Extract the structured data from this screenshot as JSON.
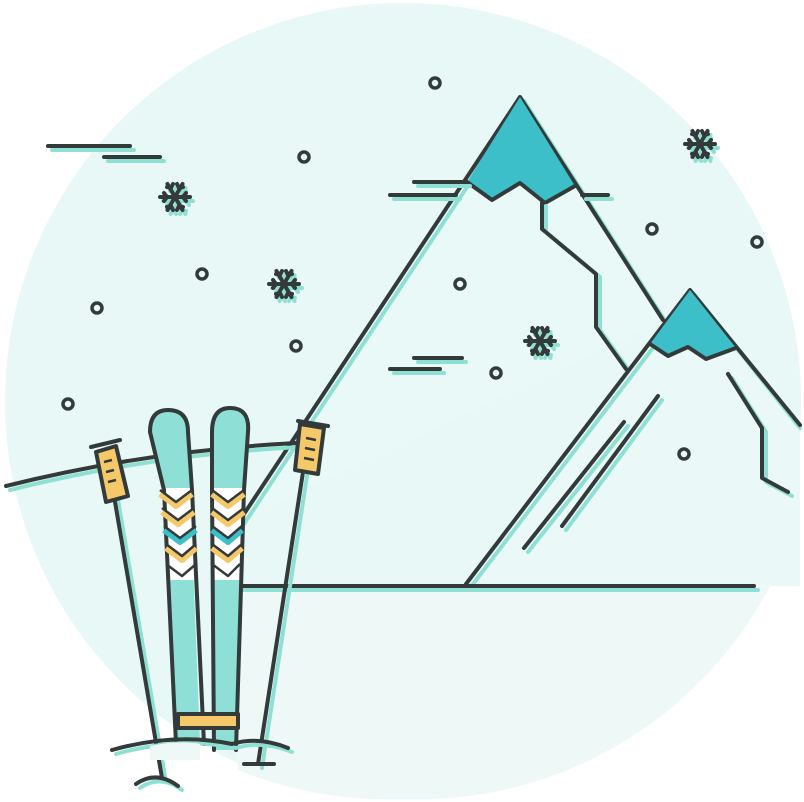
{
  "illustration": {
    "colors": {
      "background_circle": "#e7f8f6",
      "outline": "#333a3a",
      "shadow": "#8fe0d4",
      "snowcap": "#3cbfc9",
      "ski_body": "#8ee0d6",
      "pole_grip": "#f5c86a",
      "page": "#ffffff"
    },
    "icons": [
      "mountain-icon",
      "snowflake-icon",
      "ski-icon",
      "ski-pole-icon",
      "snow-dot-icon"
    ]
  }
}
